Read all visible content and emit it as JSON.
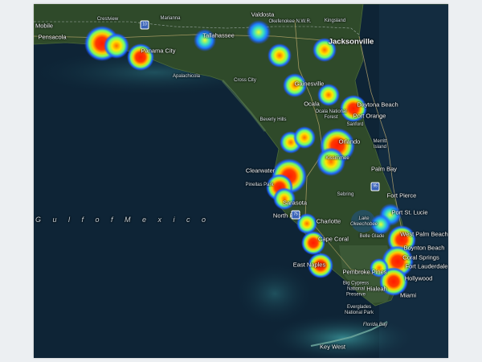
{
  "map": {
    "water_name": "G u l f   o f   M e x i c o",
    "colors": {
      "water": "#0e2436",
      "land": "#2f4a2a",
      "shallow": "#2c7f8c",
      "heat_low": "#1e4bff",
      "heat_mid": "#ffe500",
      "heat_high": "#ff1a00"
    },
    "places": [
      {
        "name": "Mobile",
        "kind": "city-mid"
      },
      {
        "name": "Pensacola",
        "kind": "city-mid"
      },
      {
        "name": "Crestview",
        "kind": "small"
      },
      {
        "name": "Marianna",
        "kind": "small"
      },
      {
        "name": "Panama City",
        "kind": "city-mid"
      },
      {
        "name": "Apalachicola",
        "kind": "small"
      },
      {
        "name": "Tallahassee",
        "kind": "city-mid"
      },
      {
        "name": "Valdosta",
        "kind": "city-mid"
      },
      {
        "name": "Okefenokee N.W.R.",
        "kind": "small"
      },
      {
        "name": "Kingsland",
        "kind": "small"
      },
      {
        "name": "Jacksonville",
        "kind": "city-big"
      },
      {
        "name": "Cross City",
        "kind": "small"
      },
      {
        "name": "Gainesville",
        "kind": "city-mid"
      },
      {
        "name": "Ocala",
        "kind": "city-mid"
      },
      {
        "name": "Ocala National Forest",
        "kind": "small"
      },
      {
        "name": "Daytona Beach",
        "kind": "city-mid"
      },
      {
        "name": "Port Orange",
        "kind": "city-mid"
      },
      {
        "name": "Beverly Hills",
        "kind": "small"
      },
      {
        "name": "Sanford",
        "kind": "small"
      },
      {
        "name": "Orlando",
        "kind": "city-mid"
      },
      {
        "name": "Merritt Island",
        "kind": "small"
      },
      {
        "name": "Kissimmee",
        "kind": "small"
      },
      {
        "name": "Clearwater",
        "kind": "city-mid"
      },
      {
        "name": "Pinellas Park",
        "kind": "small"
      },
      {
        "name": "Palm Bay",
        "kind": "city-mid"
      },
      {
        "name": "Sebring",
        "kind": "small"
      },
      {
        "name": "Fort Pierce",
        "kind": "city-mid"
      },
      {
        "name": "Sarasota",
        "kind": "city-mid"
      },
      {
        "name": "North Port",
        "kind": "city-mid"
      },
      {
        "name": "Port St. Lucie",
        "kind": "city-mid"
      },
      {
        "name": "Charlotte",
        "kind": "city-mid"
      },
      {
        "name": "Lake Okeechobee",
        "kind": "small"
      },
      {
        "name": "Belle Glade",
        "kind": "small"
      },
      {
        "name": "West Palm Beach",
        "kind": "city-mid"
      },
      {
        "name": "Cape Coral",
        "kind": "city-mid"
      },
      {
        "name": "Boynton Beach",
        "kind": "city-mid"
      },
      {
        "name": "Coral Springs",
        "kind": "city-mid"
      },
      {
        "name": "Fort Lauderdale",
        "kind": "city-mid"
      },
      {
        "name": "East Naples",
        "kind": "city-mid"
      },
      {
        "name": "Pembroke Pines",
        "kind": "city-mid"
      },
      {
        "name": "Hollywood",
        "kind": "city-mid"
      },
      {
        "name": "Big Cypress National Preserve",
        "kind": "small"
      },
      {
        "name": "Hialeah",
        "kind": "city-mid"
      },
      {
        "name": "Miami",
        "kind": "city-mid"
      },
      {
        "name": "Everglades National Park",
        "kind": "small"
      },
      {
        "name": "Florida Bay",
        "kind": "small"
      },
      {
        "name": "Key West",
        "kind": "city-mid"
      }
    ],
    "shields": [
      "10",
      "75",
      "95"
    ],
    "hotspots": [
      {
        "name": "Pensacola",
        "intensity": 0.9
      },
      {
        "name": "Panama City",
        "intensity": 0.85
      },
      {
        "name": "Tallahassee",
        "intensity": 0.3
      },
      {
        "name": "Valdosta",
        "intensity": 0.3
      },
      {
        "name": "Live Oak",
        "intensity": 0.4
      },
      {
        "name": "Jacksonville",
        "intensity": 0.4
      },
      {
        "name": "Lake City",
        "intensity": 0.4
      },
      {
        "name": "Palatka",
        "intensity": 0.4
      },
      {
        "name": "Gainesville",
        "intensity": 0.45
      },
      {
        "name": "Daytona Beach",
        "intensity": 0.6
      },
      {
        "name": "Inverness",
        "intensity": 0.4
      },
      {
        "name": "Brooksville",
        "intensity": 0.4
      },
      {
        "name": "Orlando",
        "intensity": 1.0
      },
      {
        "name": "Kissimmee",
        "intensity": 0.55
      },
      {
        "name": "Tampa",
        "intensity": 1.0
      },
      {
        "name": "St. Petersburg",
        "intensity": 0.8
      },
      {
        "name": "Sarasota",
        "intensity": 0.45
      },
      {
        "name": "Port St. Lucie",
        "intensity": 0.35
      },
      {
        "name": "Fort Myers",
        "intensity": 0.45
      },
      {
        "name": "Cape Coral",
        "intensity": 0.6
      },
      {
        "name": "Naples",
        "intensity": 0.75
      },
      {
        "name": "West Palm Beach",
        "intensity": 1.0
      },
      {
        "name": "Fort Lauderdale",
        "intensity": 1.0
      },
      {
        "name": "Miami",
        "intensity": 1.0
      }
    ]
  }
}
